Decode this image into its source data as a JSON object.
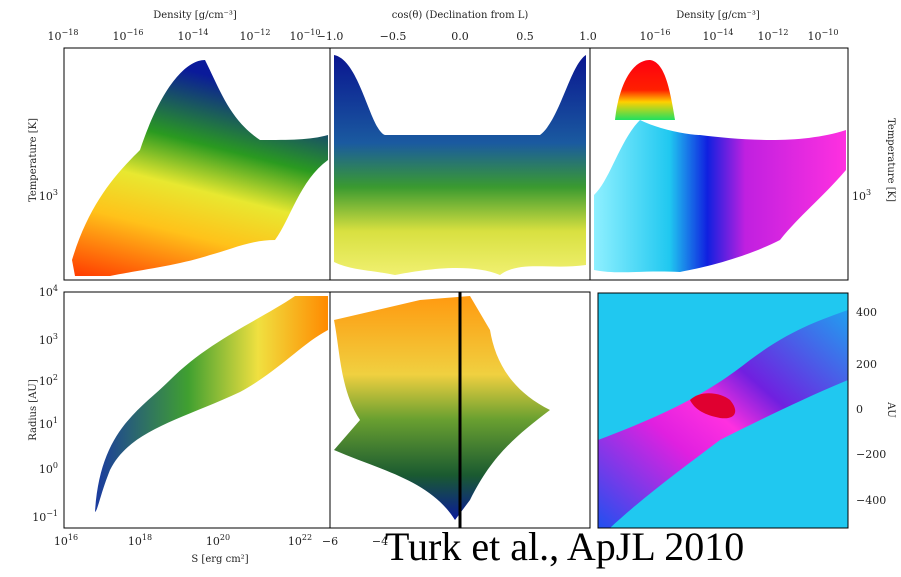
{
  "figure": {
    "top_left": {
      "x_label": "Density [g/cm⁻³]",
      "x_ticks": [
        {
          "base": "10",
          "exp": "−18"
        },
        {
          "base": "10",
          "exp": "−16"
        },
        {
          "base": "10",
          "exp": "−14"
        },
        {
          "base": "10",
          "exp": "−12"
        },
        {
          "base": "10",
          "exp": "−10"
        }
      ],
      "y_label": "Temperature [K]",
      "y_ticks": [
        {
          "base": "10",
          "exp": "3"
        }
      ]
    },
    "top_middle": {
      "x_label": "cos(θ) (Declination from L)",
      "x_ticks": [
        "−1.0",
        "−0.5",
        "0.0",
        "0.5",
        "1.0"
      ]
    },
    "top_right": {
      "x_label": "Density [g/cm⁻³]",
      "x_ticks": [
        {
          "base": "10",
          "exp": "−16"
        },
        {
          "base": "10",
          "exp": "−14"
        },
        {
          "base": "10",
          "exp": "−12"
        },
        {
          "base": "10",
          "exp": "−10"
        }
      ],
      "y_label": "Temperature [K]",
      "y_ticks": [
        {
          "base": "10",
          "exp": "3"
        }
      ]
    },
    "bottom_left": {
      "x_label": "S [erg cm²]",
      "x_ticks": [
        {
          "base": "10",
          "exp": "16"
        },
        {
          "base": "10",
          "exp": "18"
        },
        {
          "base": "10",
          "exp": "20"
        },
        {
          "base": "10",
          "exp": "22"
        }
      ],
      "y_label": "Radius [AU]",
      "y_ticks": [
        {
          "base": "10",
          "exp": "4"
        },
        {
          "base": "10",
          "exp": "3"
        },
        {
          "base": "10",
          "exp": "2"
        },
        {
          "base": "10",
          "exp": "1"
        },
        {
          "base": "10",
          "exp": "0"
        },
        {
          "base": "10",
          "exp": "−1"
        }
      ]
    },
    "bottom_middle": {
      "x_ticks": [
        "−6",
        "−4"
      ]
    },
    "bottom_right": {
      "y_label": "AU",
      "y_ticks": [
        "400",
        "200",
        "0",
        "−200",
        "−400"
      ]
    }
  },
  "caption": "Turk et al., ApJL 2010"
}
